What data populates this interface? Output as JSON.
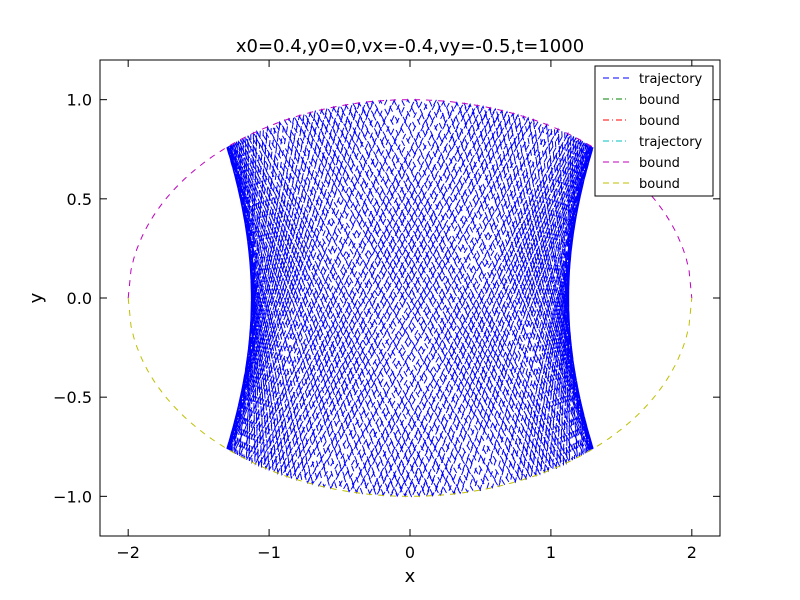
{
  "chart_data": {
    "type": "line",
    "title": "x0=0.4,y0=0,vx=-0.4,vy=-0.5,t=1000",
    "xlabel": "x",
    "ylabel": "y",
    "xlim": [
      -2.2,
      2.2
    ],
    "ylim": [
      -1.2,
      1.2
    ],
    "x_ticks": [
      -2,
      -1,
      0,
      1,
      2
    ],
    "x_tick_labels": [
      "−2",
      "−1",
      "0",
      "1",
      "2"
    ],
    "y_ticks": [
      -1.0,
      -0.5,
      0.0,
      0.5,
      1.0
    ],
    "y_tick_labels": [
      "−1.0",
      "−0.5",
      "0.0",
      "0.5",
      "1.0"
    ],
    "grid": false,
    "legend_position": "top-right",
    "series": [
      {
        "name": "trajectory",
        "color": "#0000ff",
        "style": "dashed",
        "description_value": "billiard path x0=0.4,y0=0,vx=-0.4,vy=-0.5"
      },
      {
        "name": "bound",
        "color": "#008000",
        "style": "dash-dot"
      },
      {
        "name": "bound",
        "color": "#ff0000",
        "style": "dash-dot"
      },
      {
        "name": "trajectory",
        "color": "#00bfbf",
        "style": "dash-dot"
      },
      {
        "name": "bound",
        "color": "#bf00bf",
        "style": "dashed",
        "boundary": "upper half ellipse x^2/4 + y^2 = 1"
      },
      {
        "name": "bound",
        "color": "#bfbf00",
        "style": "dashed",
        "boundary": "lower half ellipse x^2/4 + y^2 = 1"
      }
    ],
    "ellipse": {
      "a": 2,
      "b": 1
    },
    "trajectory_start": {
      "x0": 0.4,
      "y0": 0,
      "vx": -0.4,
      "vy": -0.5,
      "t": 1000
    }
  }
}
